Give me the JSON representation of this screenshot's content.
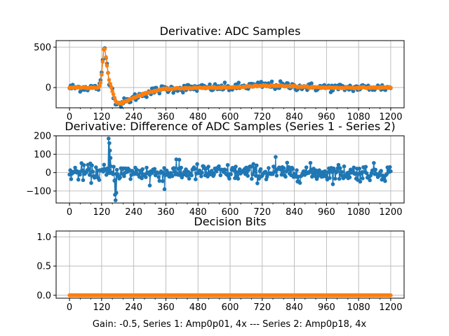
{
  "figure": {
    "xlabel": "Gain: -0.5, Series 1: Amp0p01, 4x --- Series 2: Amp0p18, 4x",
    "colors": {
      "series1": "#1f77b4",
      "series2": "#ff7f0e",
      "grid": "#b0b0b0"
    }
  },
  "chart_data": [
    {
      "type": "scatter",
      "title": "Derivative: ADC Samples",
      "xlim": [
        -50,
        1250
      ],
      "ylim": [
        -250,
        580
      ],
      "xticks": [
        0,
        120,
        240,
        360,
        480,
        600,
        720,
        840,
        960,
        1080,
        1200
      ],
      "yticks": [
        0,
        500
      ],
      "xtick_labels": [
        "0",
        "120",
        "240",
        "360",
        "480",
        "600",
        "720",
        "840",
        "960",
        "1080",
        "1200"
      ],
      "ytick_labels": [
        "0",
        "500"
      ],
      "grid": true,
      "series": [
        {
          "name": "Series 1",
          "color": "#1f77b4",
          "noise": 25,
          "shape": [
            [
              0,
              0
            ],
            [
              110,
              0
            ],
            [
              118,
              80
            ],
            [
              128,
              480
            ],
            [
              132,
              480
            ],
            [
              140,
              280
            ],
            [
              148,
              100
            ],
            [
              155,
              20
            ],
            [
              165,
              -100
            ],
            [
              175,
              -190
            ],
            [
              190,
              -200
            ],
            [
              210,
              -175
            ],
            [
              250,
              -110
            ],
            [
              300,
              -55
            ],
            [
              350,
              -20
            ],
            [
              450,
              -5
            ],
            [
              600,
              0
            ],
            [
              680,
              18
            ],
            [
              720,
              30
            ],
            [
              800,
              22
            ],
            [
              900,
              5
            ],
            [
              1000,
              -3
            ],
            [
              1200,
              0
            ]
          ]
        },
        {
          "name": "Series 2",
          "color": "#ff7f0e",
          "noise": 4,
          "shape": [
            [
              0,
              0
            ],
            [
              110,
              0
            ],
            [
              118,
              80
            ],
            [
              128,
              470
            ],
            [
              132,
              470
            ],
            [
              140,
              270
            ],
            [
              148,
              95
            ],
            [
              155,
              15
            ],
            [
              165,
              -100
            ],
            [
              175,
              -185
            ],
            [
              190,
              -195
            ],
            [
              210,
              -170
            ],
            [
              250,
              -110
            ],
            [
              300,
              -55
            ],
            [
              350,
              -20
            ],
            [
              450,
              -5
            ],
            [
              600,
              0
            ],
            [
              680,
              15
            ],
            [
              720,
              25
            ],
            [
              800,
              20
            ],
            [
              900,
              5
            ],
            [
              1000,
              -3
            ],
            [
              1200,
              0
            ]
          ]
        }
      ]
    },
    {
      "type": "scatter",
      "title": "Derivative: Difference of ADC Samples (Series 1 - Series 2)",
      "xlim": [
        -50,
        1250
      ],
      "ylim": [
        -165,
        200
      ],
      "xticks": [
        0,
        120,
        240,
        360,
        480,
        600,
        720,
        840,
        960,
        1080,
        1200
      ],
      "yticks": [
        -100,
        0,
        100,
        200
      ],
      "xtick_labels": [
        "0",
        "120",
        "240",
        "360",
        "480",
        "600",
        "720",
        "840",
        "960",
        "1080",
        "1200"
      ],
      "ytick_labels": [
        "−100",
        "0",
        "100",
        "200"
      ],
      "grid": true,
      "series": [
        {
          "name": "Series 1 - Series 2",
          "color": "#1f77b4",
          "noise": 22,
          "spikes": [
            [
              146,
              185
            ],
            [
              149,
              160
            ],
            [
              151,
              120
            ],
            [
              153,
              80
            ],
            [
              172,
              -150
            ],
            [
              175,
              -110
            ],
            [
              170,
              -120
            ],
            [
              355,
              -90
            ],
            [
              770,
              85
            ],
            [
              410,
              70
            ],
            [
              300,
              -70
            ]
          ]
        }
      ]
    },
    {
      "type": "scatter",
      "title": "Decision Bits",
      "xlim": [
        -50,
        1250
      ],
      "ylim": [
        -0.05,
        1.1
      ],
      "xticks": [
        0,
        120,
        240,
        360,
        480,
        600,
        720,
        840,
        960,
        1080,
        1200
      ],
      "yticks": [
        0.0,
        0.5,
        1.0
      ],
      "xtick_labels": [
        "0",
        "120",
        "240",
        "360",
        "480",
        "600",
        "720",
        "840",
        "960",
        "1080",
        "1200"
      ],
      "ytick_labels": [
        "0.0",
        "0.5",
        "1.0"
      ],
      "grid": true,
      "series": [
        {
          "name": "Decision Bits",
          "color": "#ff7f0e",
          "constant": 0
        }
      ]
    }
  ]
}
